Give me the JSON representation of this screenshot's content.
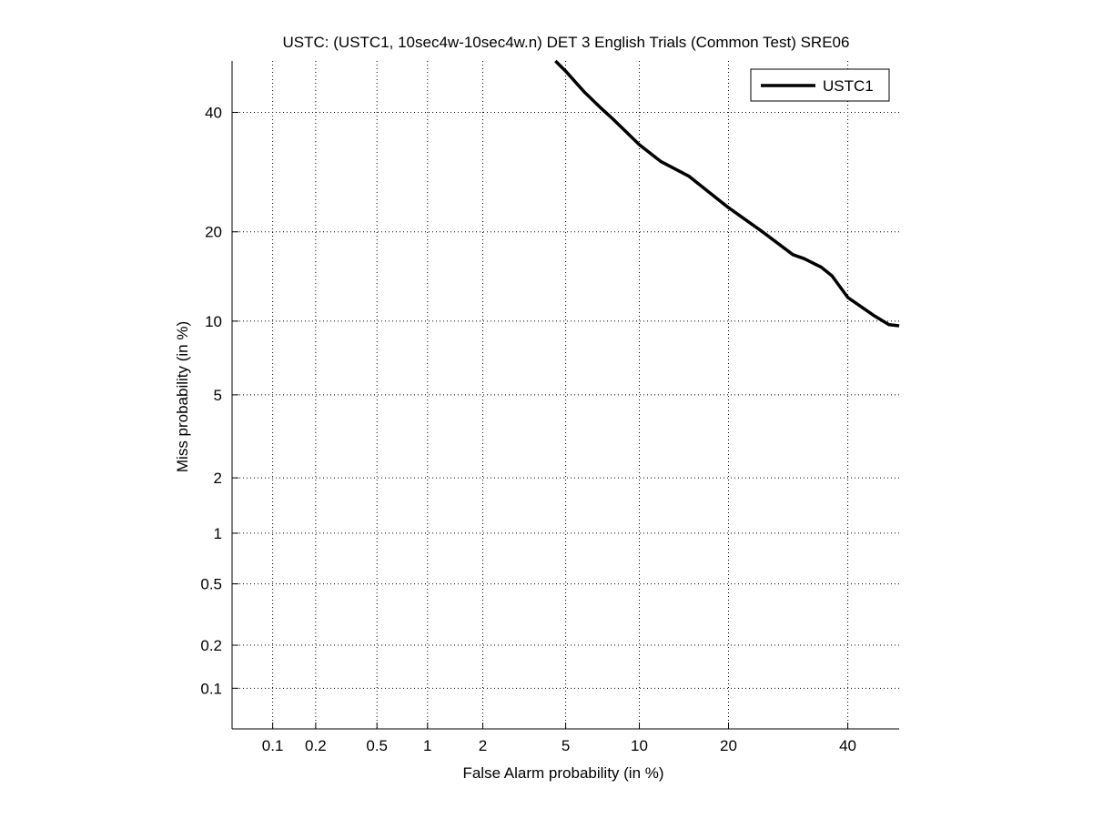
{
  "chart_data": {
    "type": "line",
    "title": "USTC: (USTC1, 10sec4w-10sec4w.n) DET 3 English Trials (Common Test) SRE06",
    "xlabel": "False Alarm probability (in %)",
    "ylabel": "Miss probability (in %)",
    "scale": "normal-deviate (probit)",
    "xlim": [
      0.05,
      50
    ],
    "ylim": [
      0.05,
      50
    ],
    "xticks": [
      0.1,
      0.2,
      0.5,
      1,
      2,
      5,
      10,
      20,
      40
    ],
    "xtick_labels": [
      "0.1",
      "0.2",
      "0.5",
      "1",
      "2",
      "5",
      "10",
      "20",
      "40"
    ],
    "yticks": [
      0.1,
      0.2,
      0.5,
      1,
      2,
      5,
      10,
      20,
      40
    ],
    "ytick_labels": [
      "0.1",
      "0.2",
      "0.5",
      "1",
      "2",
      "5",
      "10",
      "20",
      "40"
    ],
    "grid": true,
    "legend": {
      "position": "top-right",
      "entries": [
        "USTC1"
      ]
    },
    "series": [
      {
        "name": "USTC1",
        "color": "#000000",
        "x": [
          4.5,
          5.0,
          6.0,
          7.0,
          8.0,
          10.0,
          12.0,
          15.0,
          20.0,
          25.0,
          30.0,
          32.0,
          35.0,
          37.0,
          40.0,
          45.0,
          48.0,
          50.0
        ],
        "y": [
          50.0,
          48.0,
          44.0,
          41.0,
          38.5,
          34.0,
          31.0,
          28.5,
          23.5,
          20.0,
          17.0,
          16.5,
          15.5,
          14.5,
          12.2,
          10.5,
          9.7,
          9.6
        ]
      }
    ]
  }
}
